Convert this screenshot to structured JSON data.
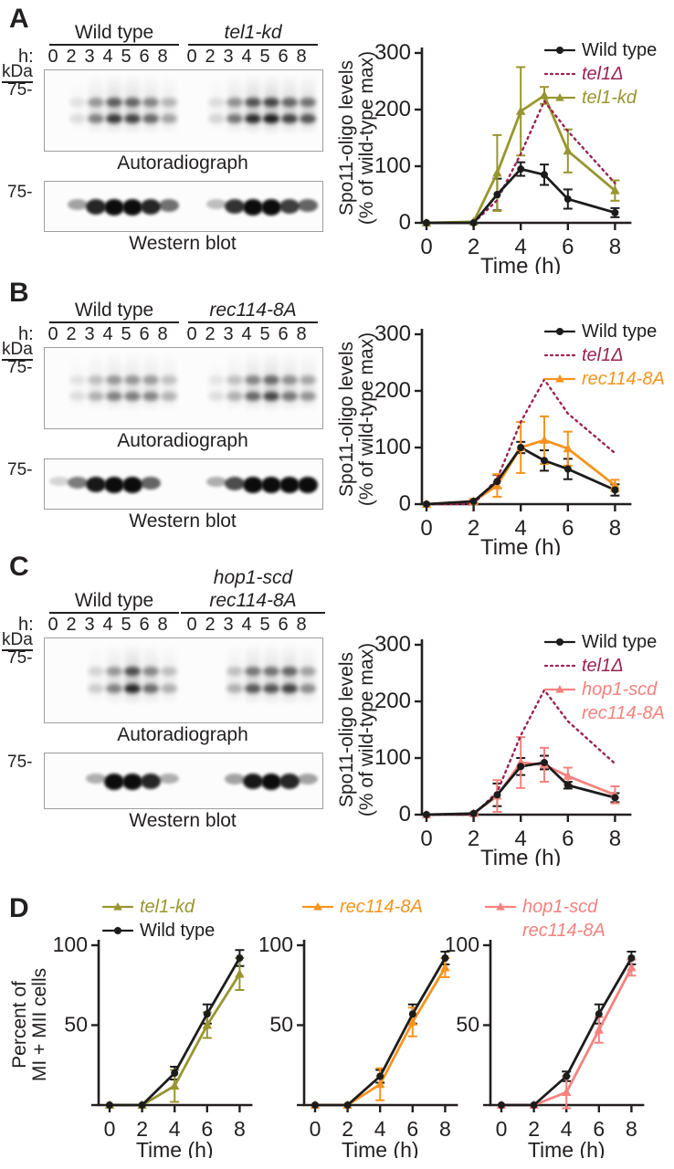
{
  "panels": {
    "A": {
      "label": "A",
      "blot": {
        "group1": "Wild type",
        "group2": "tel1-kd",
        "h_label": "h:",
        "lane_times": [
          "0",
          "2",
          "3",
          "4",
          "5",
          "6",
          "8"
        ],
        "kda_label": "kDa",
        "marker_75": "75-",
        "auto_caption": "Autoradiograph",
        "wb_caption": "Western blot",
        "auto_lanes": {
          "g1": [
            0,
            0.12,
            0.5,
            0.85,
            0.8,
            0.62,
            0.35
          ],
          "g2": [
            0,
            0.15,
            0.55,
            0.92,
            1,
            0.8,
            0.72
          ]
        },
        "wb_lanes": {
          "g1": [
            0,
            0.35,
            0.85,
            1,
            1,
            0.85,
            0.55
          ],
          "g2": [
            0,
            0.25,
            0.8,
            1,
            1,
            0.75,
            0.6
          ]
        }
      }
    },
    "B": {
      "label": "B",
      "blot": {
        "group1": "Wild type",
        "group2": "rec114-8A",
        "h_label": "h:",
        "lane_times": [
          "0",
          "2",
          "3",
          "4",
          "5",
          "6",
          "8"
        ],
        "kda_label": "kDa",
        "marker_75": "75-",
        "auto_caption": "Autoradiograph",
        "wb_caption": "Western blot",
        "auto_lanes": {
          "g1": [
            0,
            0.12,
            0.3,
            0.5,
            0.52,
            0.48,
            0.28
          ],
          "g2": [
            0,
            0.1,
            0.3,
            0.62,
            0.78,
            0.55,
            0.42
          ]
        },
        "wb_lanes": {
          "g1": [
            0.15,
            0.5,
            0.9,
            1,
            0.95,
            0.6,
            0
          ],
          "g2": [
            0,
            0.3,
            0.7,
            1,
            1,
            1,
            0.95
          ]
        }
      }
    },
    "C": {
      "label": "C",
      "blot": {
        "group1": "Wild type",
        "group2_top": "hop1-scd",
        "group2_bottom": "rec114-8A",
        "h_label": "h:",
        "lane_times": [
          "0",
          "2",
          "3",
          "4",
          "5",
          "6",
          "8"
        ],
        "kda_label": "kDa",
        "marker_75": "75-",
        "auto_caption": "Autoradiograph",
        "wb_caption": "Western blot",
        "auto_lanes": {
          "g1": [
            0,
            0,
            0.18,
            0.5,
            0.95,
            0.6,
            0.3
          ],
          "g2": [
            0,
            0,
            0.3,
            0.7,
            0.72,
            0.8,
            0.45
          ]
        },
        "wb_lanes": {
          "g1": [
            0,
            0,
            0.3,
            0.95,
            1,
            0.85,
            0.3
          ],
          "g2": [
            0,
            0,
            0.35,
            0.9,
            1,
            0.85,
            0.35
          ]
        }
      }
    },
    "D": {
      "label": "D"
    }
  },
  "colors": {
    "wild_type": "#1c1c1c",
    "tel1_delta": "#9c2153",
    "tel1_kd": "#97962f",
    "rec114_8A": "#f7941d",
    "hop1_scd_rec114_8A": "#f5827e"
  },
  "chart_data": [
    {
      "id": "spo11-oligo-tel1-kd",
      "type": "line",
      "x": [
        0,
        2,
        3,
        4,
        5,
        6,
        8
      ],
      "xticks": [
        0,
        2,
        4,
        6,
        8
      ],
      "yticks": [
        0,
        100,
        200,
        300
      ],
      "ylim": [
        0,
        300
      ],
      "xlabel": "Time (h)",
      "ylabel_lines": [
        "Spo11-oligo levels",
        "(% of wild-type max)"
      ],
      "legend_order": [
        0,
        1,
        2
      ],
      "series": [
        {
          "name": "Wild type",
          "italic": false,
          "color": "#1c1c1c",
          "marker": "circle",
          "line": "solid",
          "values": [
            0,
            0,
            50,
            95,
            85,
            42,
            18
          ],
          "err": [
            0,
            0,
            28,
            12,
            18,
            17,
            8
          ]
        },
        {
          "name": "tel1Δ",
          "italic": true,
          "color": "#9c2153",
          "marker": "none",
          "line": "dotted",
          "values": [
            0,
            0,
            40,
            122,
            215,
            162,
            70
          ],
          "err": [
            0,
            0,
            0,
            0,
            0,
            0,
            0
          ]
        },
        {
          "name": "tel1-kd",
          "italic": true,
          "color": "#97962f",
          "marker": "triangle",
          "line": "solid",
          "values": [
            0,
            2,
            88,
            197,
            225,
            127,
            57
          ],
          "err": [
            0,
            0,
            67,
            78,
            15,
            38,
            18
          ]
        }
      ]
    },
    {
      "id": "spo11-oligo-rec114-8A",
      "type": "line",
      "x": [
        0,
        2,
        3,
        4,
        5,
        6,
        8
      ],
      "xticks": [
        0,
        2,
        4,
        6,
        8
      ],
      "yticks": [
        0,
        100,
        200,
        300
      ],
      "ylim": [
        0,
        300
      ],
      "xlabel": "Time (h)",
      "ylabel_lines": [
        "Spo11-oligo levels",
        "(% of wild-type max)"
      ],
      "legend_order": [
        0,
        1,
        2
      ],
      "series": [
        {
          "name": "Wild type",
          "italic": false,
          "color": "#1c1c1c",
          "marker": "circle",
          "line": "solid",
          "values": [
            0,
            5,
            40,
            100,
            77,
            62,
            25
          ],
          "err": [
            0,
            4,
            12,
            10,
            18,
            18,
            10
          ]
        },
        {
          "name": "tel1Δ",
          "italic": true,
          "color": "#9c2153",
          "marker": "none",
          "line": "dotted",
          "values": [
            0,
            0,
            45,
            145,
            220,
            160,
            90
          ],
          "err": [
            0,
            0,
            0,
            0,
            0,
            0,
            0
          ]
        },
        {
          "name": "rec114-8A",
          "italic": true,
          "color": "#f7941d",
          "marker": "triangle",
          "line": "solid",
          "values": [
            0,
            5,
            33,
            100,
            113,
            98,
            33
          ],
          "err": [
            0,
            4,
            20,
            45,
            42,
            30,
            10
          ]
        }
      ]
    },
    {
      "id": "spo11-oligo-hop1-scd-rec114-8A",
      "type": "line",
      "x": [
        0,
        2,
        3,
        4,
        5,
        6,
        8
      ],
      "xticks": [
        0,
        2,
        4,
        6,
        8
      ],
      "yticks": [
        0,
        100,
        200,
        300
      ],
      "ylim": [
        0,
        300
      ],
      "xlabel": "Time (h)",
      "ylabel_lines": [
        "Spo11-oligo levels",
        "(% of wild-type max)"
      ],
      "legend_order": [
        0,
        1,
        2
      ],
      "series": [
        {
          "name": "Wild type",
          "italic": false,
          "color": "#1c1c1c",
          "marker": "circle",
          "line": "solid",
          "values": [
            0,
            2,
            35,
            85,
            92,
            52,
            30
          ],
          "err": [
            0,
            2,
            20,
            15,
            12,
            6,
            8
          ]
        },
        {
          "name": "tel1Δ",
          "italic": true,
          "color": "#9c2153",
          "marker": "none",
          "line": "dotted",
          "values": [
            0,
            0,
            40,
            140,
            220,
            165,
            90
          ],
          "err": [
            0,
            0,
            0,
            0,
            0,
            0,
            0
          ]
        },
        {
          "name": "hop1-scd rec114-8A",
          "name_lines": [
            "hop1-scd",
            "rec114-8A"
          ],
          "italic": true,
          "color": "#f5827e",
          "marker": "triangle",
          "line": "solid",
          "values": [
            0,
            2,
            33,
            92,
            88,
            68,
            35
          ],
          "err": [
            0,
            2,
            28,
            45,
            30,
            15,
            15
          ]
        }
      ]
    },
    {
      "id": "meiosis-progression-tel1-kd",
      "type": "line",
      "x": [
        0,
        2,
        4,
        6,
        8
      ],
      "xticks": [
        0,
        2,
        4,
        6,
        8
      ],
      "yticks": [
        0,
        50,
        100
      ],
      "ytick_labels": [
        "",
        "50",
        "100"
      ],
      "ylim": [
        0,
        100
      ],
      "xlabel": "Time (h)",
      "ylabel_lines": [
        "Percent of",
        "MI + MII cells"
      ],
      "legend_order": [
        1,
        0
      ],
      "series": [
        {
          "name": "Wild type",
          "italic": false,
          "color": "#1c1c1c",
          "marker": "circle",
          "line": "solid",
          "values": [
            0,
            0,
            20,
            57,
            92
          ],
          "err": [
            0,
            0,
            4,
            6,
            5
          ]
        },
        {
          "name": "tel1-kd",
          "italic": true,
          "color": "#97962f",
          "marker": "triangle",
          "line": "solid",
          "values": [
            0,
            0,
            12,
            50,
            82
          ],
          "err": [
            0,
            0,
            10,
            8,
            10
          ]
        }
      ]
    },
    {
      "id": "meiosis-progression-rec114-8A",
      "type": "line",
      "x": [
        0,
        2,
        4,
        6,
        8
      ],
      "xticks": [
        0,
        2,
        4,
        6,
        8
      ],
      "yticks": [
        0,
        50,
        100
      ],
      "ytick_labels": [
        "",
        "50",
        "100"
      ],
      "ylim": [
        0,
        100
      ],
      "xlabel": "Time (h)",
      "legend_order": [
        1
      ],
      "series": [
        {
          "name": "Wild type",
          "italic": false,
          "color": "#1c1c1c",
          "marker": "circle",
          "line": "solid",
          "values": [
            0,
            0,
            18,
            57,
            92
          ],
          "err": [
            0,
            0,
            4,
            6,
            4
          ]
        },
        {
          "name": "rec114-8A",
          "italic": true,
          "color": "#f7941d",
          "marker": "triangle",
          "line": "solid",
          "values": [
            0,
            0,
            13,
            52,
            86
          ],
          "err": [
            0,
            0,
            10,
            9,
            6
          ]
        }
      ]
    },
    {
      "id": "meiosis-progression-hop1-scd-rec114-8A",
      "type": "line",
      "x": [
        0,
        2,
        4,
        6,
        8
      ],
      "xticks": [
        0,
        2,
        4,
        6,
        8
      ],
      "yticks": [
        0,
        50,
        100
      ],
      "ytick_labels": [
        "",
        "50",
        "100"
      ],
      "ylim": [
        0,
        100
      ],
      "xlabel": "Time (h)",
      "legend_order": [
        1
      ],
      "series": [
        {
          "name": "Wild type",
          "italic": false,
          "color": "#1c1c1c",
          "marker": "circle",
          "line": "solid",
          "values": [
            0,
            0,
            18,
            57,
            92
          ],
          "err": [
            0,
            0,
            3,
            6,
            4
          ]
        },
        {
          "name": "hop1-scd rec114-8A",
          "name_lines": [
            "hop1-scd",
            "rec114-8A"
          ],
          "italic": true,
          "color": "#f5827e",
          "marker": "triangle",
          "line": "solid",
          "values": [
            0,
            0,
            8,
            47,
            86
          ],
          "err": [
            0,
            0,
            10,
            8,
            5
          ]
        }
      ]
    }
  ]
}
